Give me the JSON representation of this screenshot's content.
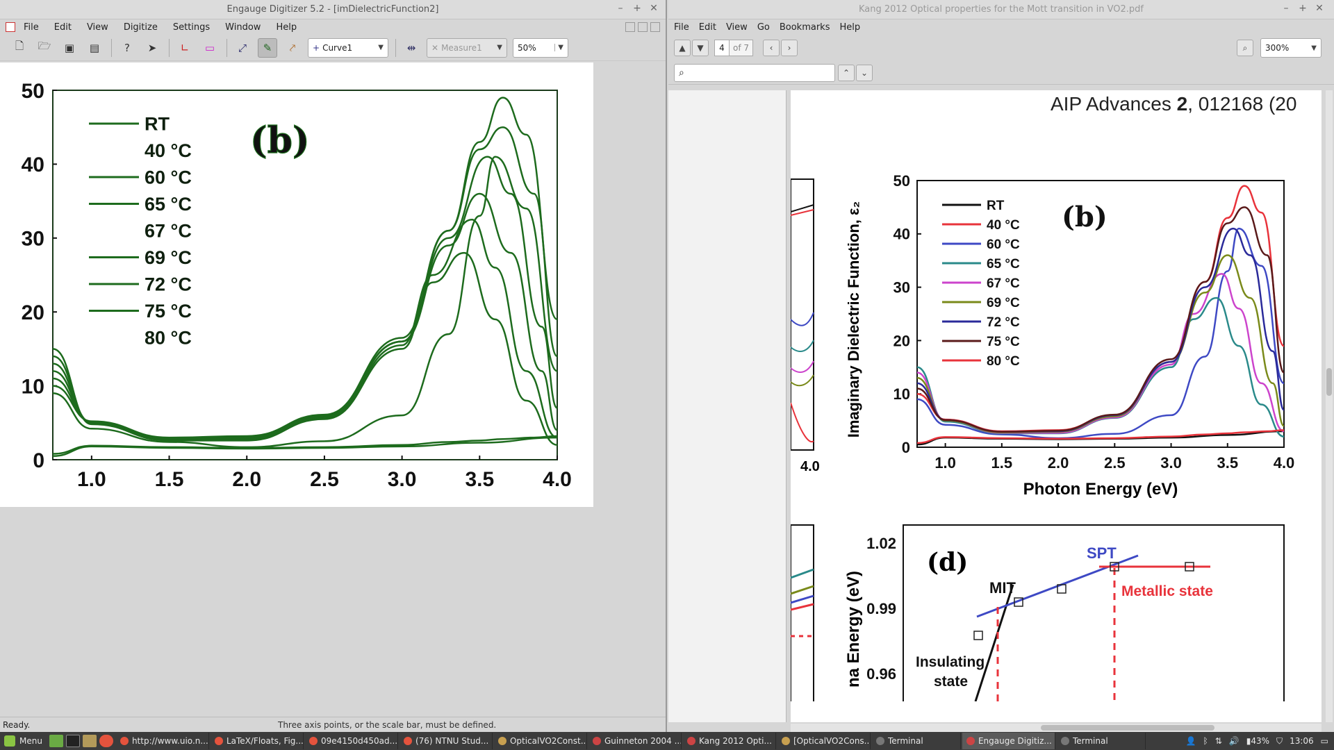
{
  "engauge": {
    "title": "Engauge Digitizer 5.2 - [imDielectricFunction2]",
    "window_controls": [
      "–",
      "+",
      "✕"
    ],
    "menu": [
      "File",
      "Edit",
      "View",
      "Digitize",
      "Settings",
      "Window",
      "Help"
    ],
    "curve_select": "Curve1",
    "measure_select": "Measure1",
    "zoom": "50%",
    "status_ready": "Ready.",
    "status_message": "Three axis points, or the scale bar, must be defined.",
    "plot": {
      "panel_label": "(b)",
      "y_ticks": [
        "50",
        "40",
        "30",
        "20",
        "10",
        "0"
      ],
      "x_ticks": [
        "1.0",
        "1.5",
        "2.0",
        "2.5",
        "3.0",
        "3.5",
        "4.0"
      ],
      "legend": [
        "RT",
        "40 °C",
        "60 °C",
        "65 °C",
        "67 °C",
        "69 °C",
        "72 °C",
        "75 °C",
        "80 °C"
      ]
    }
  },
  "pdf": {
    "title": "Kang 2012 Optical properties for the Mott transition in VO2.pdf",
    "menu": [
      "File",
      "Edit",
      "View",
      "Go",
      "Bookmarks",
      "Help"
    ],
    "page_number": "4",
    "page_of": "of 7",
    "zoom": "300%",
    "search_placeholder": "",
    "journal_header_plain": "AIP Advances ",
    "journal_header_bold": "2",
    "journal_header_rest": ", 012168 (20",
    "fig_b": {
      "panel_label": "(b)",
      "ylabel": "Imaginary Dielectric Function, ε₂",
      "xlabel": "Photon Energy (eV)",
      "y_ticks": [
        "50",
        "40",
        "30",
        "20",
        "10",
        "0"
      ],
      "x_ticks": [
        "1.0",
        "1.5",
        "2.0",
        "2.5",
        "3.0",
        "3.5",
        "4.0"
      ],
      "left_cut_tick": "4.0",
      "legend": [
        {
          "label": "RT",
          "color": "#111111"
        },
        {
          "label": "40 °C",
          "color": "#e8333b"
        },
        {
          "label": "60 °C",
          "color": "#3e49c4"
        },
        {
          "label": "65 °C",
          "color": "#2a8a8a"
        },
        {
          "label": "67 °C",
          "color": "#cc44cc"
        },
        {
          "label": "69 °C",
          "color": "#7a8a1a"
        },
        {
          "label": "72 °C",
          "color": "#2a2a9a"
        },
        {
          "label": "75 °C",
          "color": "#5a1a1a"
        },
        {
          "label": "80 °C",
          "color": "#e8333b"
        }
      ]
    },
    "fig_d": {
      "panel_label": "(d)",
      "ylabel": "na Energy (eV)",
      "y_ticks": [
        "1.02",
        "0.99",
        "0.96"
      ],
      "label_mit": "MIT",
      "label_spt": "SPT",
      "label_metallic": "Metallic state",
      "label_insulating_1": "Insulating",
      "label_insulating_2": "state"
    }
  },
  "taskbar": {
    "menu_label": "Menu",
    "items": [
      {
        "label": "http://www.uio.n...",
        "color": "#e5533d"
      },
      {
        "label": "LaTeX/Floats, Fig...",
        "color": "#e5533d"
      },
      {
        "label": "09e4150d450ad...",
        "color": "#e5533d"
      },
      {
        "label": "(76) NTNU Stud...",
        "color": "#e5533d"
      },
      {
        "label": "OpticalVO2Const...",
        "color": "#c8a050"
      },
      {
        "label": "Guinneton 2004 ...",
        "color": "#cc4444"
      },
      {
        "label": "Kang 2012 Opti...",
        "color": "#cc4444"
      },
      {
        "label": "[OpticalVO2Cons...",
        "color": "#c8a050"
      },
      {
        "label": "Terminal",
        "color": "#777777"
      },
      {
        "label": "Engauge Digitiz...",
        "color": "#cc4444"
      },
      {
        "label": "Terminal",
        "color": "#777777"
      }
    ],
    "battery": "43%",
    "clock": "13:06"
  },
  "chart_data": [
    {
      "type": "line",
      "title": "(b)",
      "xlabel": "Photon Energy (eV)",
      "ylabel": "Imaginary Dielectric Function, ε₂",
      "xlim": [
        0.75,
        4.0
      ],
      "ylim": [
        0,
        50
      ],
      "series": [
        {
          "name": "RT",
          "x": [
            0.75,
            1.0,
            1.5,
            2.0,
            2.5,
            3.0,
            3.5,
            4.0
          ],
          "y": [
            0.5,
            1.8,
            1.6,
            1.5,
            1.6,
            1.8,
            2.3,
            3.0
          ]
        },
        {
          "name": "40 °C",
          "x": [
            0.75,
            1.0,
            1.5,
            2.0,
            2.5,
            3.0,
            3.3,
            3.5,
            3.65,
            3.8,
            4.0
          ],
          "y": [
            10,
            5.2,
            3.0,
            3.2,
            6.0,
            16,
            31,
            43,
            49,
            44,
            19
          ]
        },
        {
          "name": "60 °C",
          "x": [
            0.75,
            1.0,
            1.5,
            2.0,
            2.5,
            3.0,
            3.3,
            3.5,
            3.6,
            3.8,
            4.0
          ],
          "y": [
            9,
            4.2,
            2.4,
            1.7,
            2.5,
            6.0,
            17,
            33,
            41,
            34,
            12
          ]
        },
        {
          "name": "65 °C",
          "x": [
            0.75,
            1.0,
            1.5,
            2.0,
            2.5,
            3.0,
            3.2,
            3.4,
            3.6,
            3.8,
            4.0
          ],
          "y": [
            15,
            4.8,
            2.6,
            2.6,
            5.5,
            15,
            24,
            28,
            19,
            8,
            2
          ]
        },
        {
          "name": "67 °C",
          "x": [
            0.75,
            1.0,
            1.5,
            2.0,
            2.5,
            3.0,
            3.2,
            3.45,
            3.6,
            3.8,
            4.0
          ],
          "y": [
            14,
            5.0,
            2.7,
            2.7,
            5.6,
            15.5,
            25,
            32.5,
            26,
            12,
            3
          ]
        },
        {
          "name": "69 °C",
          "x": [
            0.75,
            1.0,
            1.5,
            2.0,
            2.5,
            3.0,
            3.3,
            3.5,
            3.7,
            3.9,
            4.0
          ],
          "y": [
            13,
            5.0,
            2.8,
            2.9,
            5.8,
            16,
            29,
            36,
            28,
            12,
            4
          ]
        },
        {
          "name": "72 °C",
          "x": [
            0.75,
            1.0,
            1.5,
            2.0,
            2.5,
            3.0,
            3.3,
            3.55,
            3.7,
            3.9,
            4.0
          ],
          "y": [
            12,
            5.1,
            2.9,
            3.0,
            6.0,
            16,
            30,
            41,
            36,
            18,
            7
          ]
        },
        {
          "name": "75 °C",
          "x": [
            0.75,
            1.0,
            1.5,
            2.0,
            2.5,
            3.0,
            3.3,
            3.5,
            3.65,
            3.85,
            4.0
          ],
          "y": [
            11,
            5.1,
            2.9,
            3.1,
            6.1,
            16.5,
            31,
            42,
            45,
            36,
            14
          ]
        },
        {
          "name": "80 °C",
          "x": [
            0.75,
            1.0,
            1.5,
            2.0,
            2.5,
            3.0,
            3.3,
            3.5,
            3.65,
            3.85,
            4.0
          ],
          "y": [
            0.8,
            1.9,
            1.7,
            1.6,
            1.7,
            2.0,
            2.4,
            2.6,
            2.8,
            3.0,
            3.2
          ]
        }
      ]
    },
    {
      "type": "line",
      "title": "(d)",
      "ylabel": "na Energy (eV)",
      "series": [
        {
          "name": "MIT",
          "x": [
            0,
            1
          ],
          "y": [
            0.955,
            1.0
          ]
        },
        {
          "name": "SPT",
          "x": [
            0,
            1,
            2,
            3,
            4
          ],
          "y": [
            0.988,
            0.99,
            0.994,
            1.004,
            1.006
          ]
        },
        {
          "name": "Metallic state",
          "x": [
            3,
            4
          ],
          "y": [
            1.004,
            1.004
          ]
        }
      ]
    }
  ]
}
